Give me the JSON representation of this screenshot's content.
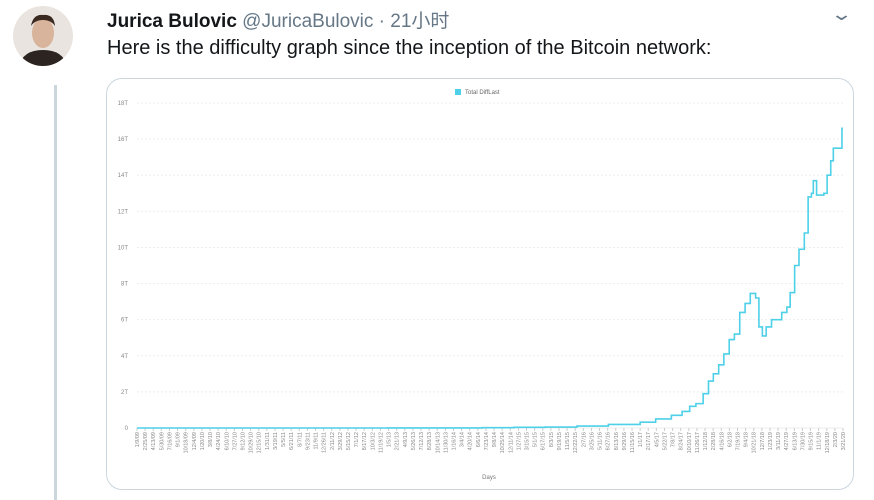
{
  "tweet": {
    "name": "Jurica Bulovic",
    "handle": "@JuricaBulovic",
    "separator": "·",
    "time": "21小时",
    "text": "Here is the difficulty graph since the inception of the Bitcoin network:"
  },
  "colors": {
    "line": "#4dd0e8",
    "grid": "#eeeeee",
    "axis_text": "#888888"
  },
  "chart_data": {
    "type": "line",
    "title": "",
    "legend": [
      "Total DiffLast"
    ],
    "legend_placement": "top-center",
    "xlabel": "Days",
    "ylabel": "",
    "ylim": [
      0,
      18
    ],
    "yticks": [
      "0",
      "2T",
      "4T",
      "6T",
      "8T",
      "10T",
      "12T",
      "14T",
      "16T",
      "18T"
    ],
    "xticks": [
      "1/9/09",
      "2/25/09",
      "4/13/09",
      "5/30/09",
      "7/16/09",
      "9/1/09",
      "10/18/09",
      "12/4/09",
      "1/20/10",
      "3/8/10",
      "4/24/10",
      "6/10/10",
      "7/27/10",
      "9/12/10",
      "10/29/10",
      "12/15/10",
      "1/31/11",
      "3/19/11",
      "5/5/11",
      "6/21/11",
      "8/7/11",
      "9/23/11",
      "11/9/11",
      "12/26/11",
      "2/11/12",
      "3/29/12",
      "5/15/12",
      "7/1/12",
      "8/17/12",
      "10/3/12",
      "11/19/12",
      "1/5/13",
      "2/21/13",
      "4/9/13",
      "5/26/13",
      "7/12/13",
      "8/28/13",
      "10/14/13",
      "11/30/13",
      "1/16/14",
      "3/4/14",
      "4/20/14",
      "6/6/14",
      "7/23/14",
      "9/8/14",
      "10/25/14",
      "12/11/14",
      "1/27/15",
      "3/15/15",
      "5/1/15",
      "6/17/15",
      "8/3/15",
      "9/19/15",
      "11/5/15",
      "12/22/15",
      "2/7/16",
      "3/25/16",
      "5/11/16",
      "6/27/16",
      "8/13/16",
      "9/29/16",
      "11/15/16",
      "1/1/17",
      "2/17/17",
      "4/5/17",
      "5/22/17",
      "7/8/17",
      "8/24/17",
      "10/10/17",
      "11/26/17",
      "1/12/18",
      "2/28/18",
      "4/16/18",
      "6/2/18",
      "7/19/18",
      "9/4/18",
      "10/21/18",
      "12/7/18",
      "1/23/19",
      "3/11/19",
      "4/27/19",
      "6/13/19",
      "7/30/19",
      "9/15/19",
      "11/1/19",
      "12/18/19",
      "2/3/20",
      "3/21/20"
    ],
    "series": [
      {
        "name": "Total DiffLast",
        "unit": "T",
        "points": [
          [
            "2009-01-09",
            0
          ],
          [
            "2013-01-01",
            0.003
          ],
          [
            "2014-01-01",
            0.002
          ],
          [
            "2014-07-01",
            0.017
          ],
          [
            "2015-01-01",
            0.04
          ],
          [
            "2015-07-01",
            0.05
          ],
          [
            "2016-01-01",
            0.11
          ],
          [
            "2016-07-01",
            0.2
          ],
          [
            "2017-01-01",
            0.32
          ],
          [
            "2017-04-01",
            0.5
          ],
          [
            "2017-07-01",
            0.7
          ],
          [
            "2017-09-01",
            0.92
          ],
          [
            "2017-10-15",
            1.2
          ],
          [
            "2017-11-20",
            1.35
          ],
          [
            "2018-01-01",
            1.9
          ],
          [
            "2018-02-01",
            2.6
          ],
          [
            "2018-03-01",
            3.0
          ],
          [
            "2018-04-01",
            3.5
          ],
          [
            "2018-05-01",
            4.1
          ],
          [
            "2018-06-01",
            4.9
          ],
          [
            "2018-07-01",
            5.2
          ],
          [
            "2018-08-01",
            6.4
          ],
          [
            "2018-09-01",
            6.9
          ],
          [
            "2018-10-01",
            7.45
          ],
          [
            "2018-11-01",
            7.2
          ],
          [
            "2018-11-20",
            5.6
          ],
          [
            "2018-12-10",
            5.1
          ],
          [
            "2019-01-01",
            5.6
          ],
          [
            "2019-02-01",
            6.0
          ],
          [
            "2019-04-01",
            6.4
          ],
          [
            "2019-05-01",
            6.7
          ],
          [
            "2019-05-20",
            7.5
          ],
          [
            "2019-06-15",
            9.0
          ],
          [
            "2019-07-10",
            9.9
          ],
          [
            "2019-08-10",
            10.8
          ],
          [
            "2019-09-01",
            12.8
          ],
          [
            "2019-09-20",
            13.0
          ],
          [
            "2019-10-01",
            13.7
          ],
          [
            "2019-10-20",
            12.9
          ],
          [
            "2019-12-01",
            13.0
          ],
          [
            "2019-12-20",
            14.0
          ],
          [
            "2020-01-10",
            14.8
          ],
          [
            "2020-01-25",
            15.5
          ],
          [
            "2020-03-01",
            15.5
          ],
          [
            "2020-03-15",
            16.6
          ],
          [
            "2020-03-21",
            16.6
          ]
        ]
      }
    ]
  }
}
